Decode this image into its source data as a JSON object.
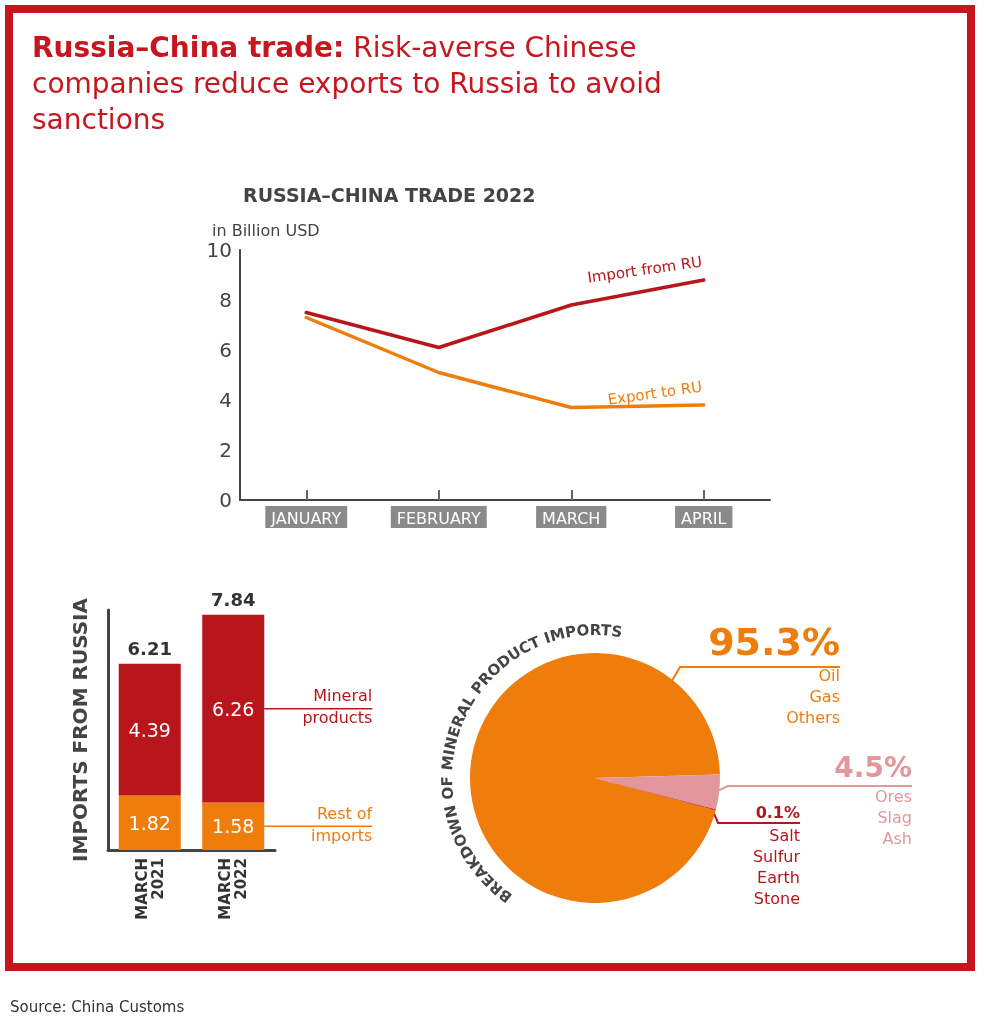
{
  "chart_data": [
    {
      "type": "line",
      "title": "Russia–China trade: Risk-averse Chinese companies reduce exports to Russia to avoid sanctions",
      "subtitle": "RUSSIA–CHINA TRADE 2022",
      "ylabel": "in Billion USD",
      "categories": [
        "JANUARY",
        "FEBRUARY",
        "MARCH",
        "APRIL"
      ],
      "series": [
        {
          "name": "Import from RU",
          "color": "#b8151c",
          "values": [
            7.5,
            6.1,
            7.8,
            8.8
          ]
        },
        {
          "name": "Export to RU",
          "color": "#ef7d0c",
          "values": [
            7.3,
            5.1,
            3.7,
            3.8
          ]
        }
      ],
      "ylim": [
        0,
        10
      ],
      "yticks": [
        0,
        2,
        4,
        6,
        8,
        10
      ],
      "grid": false,
      "marker": "none"
    },
    {
      "type": "bar",
      "ylabel": "IMPORTS FROM RUSSIA",
      "categories": [
        "MARCH 2021",
        "MARCH 2022"
      ],
      "stacked": true,
      "series": [
        {
          "name": "Rest of imports",
          "color": "#ef7d0c",
          "values": [
            1.82,
            1.58
          ]
        },
        {
          "name": "Mineral products",
          "color": "#b8151c",
          "values": [
            4.39,
            6.26
          ]
        }
      ],
      "totals": [
        "6.21",
        "7.84"
      ],
      "data_labels": true,
      "tick_labels": "x"
    },
    {
      "type": "pie",
      "title": "BREAKDOWN OF MINERAL PRODUCT IMPORTS",
      "categories": [
        "Oil Gas Others",
        "Ores Slag Ash",
        "Salt Sulfur Earth Stone"
      ],
      "values": [
        95.3,
        4.5,
        0.1
      ],
      "colors": [
        "#ef7d0c",
        "#e3979c",
        "#b8151c"
      ],
      "value_labels": [
        "95.3%",
        "4.5%",
        "0.1%"
      ],
      "annotations": [
        "Source: China Customs"
      ]
    }
  ]
}
